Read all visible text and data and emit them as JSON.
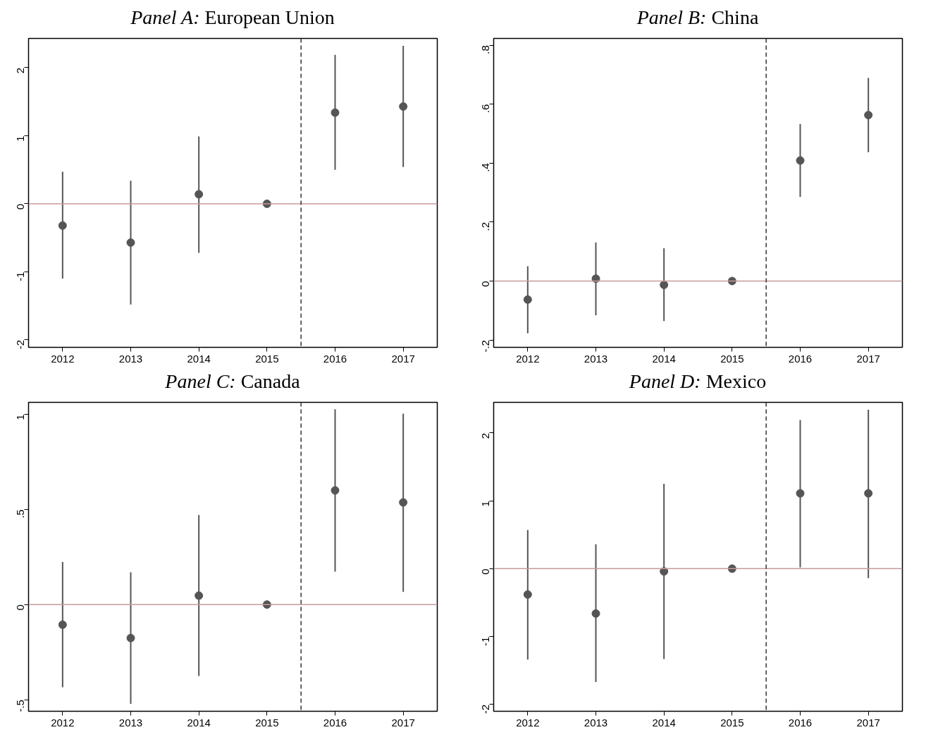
{
  "chart_data": [
    {
      "type": "scatter",
      "title": "Panel A: European Union",
      "x": [
        2012,
        2013,
        2014,
        2015,
        2016,
        2017
      ],
      "values": [
        -0.32,
        -0.57,
        0.14,
        0,
        1.34,
        1.43
      ],
      "color": "#555555",
      "marker": "circle",
      "errors": [
        [
          -1.1,
          0.47
        ],
        [
          -1.48,
          0.34
        ],
        [
          -0.72,
          0.99
        ],
        null,
        [
          0.5,
          2.19
        ],
        [
          0.54,
          2.32
        ]
      ],
      "xlim": [
        2011.5,
        2017.5
      ],
      "xticks": [
        2012,
        2013,
        2014,
        2015,
        2016,
        2017
      ],
      "ylim": [
        -2.11,
        2.43
      ],
      "yticks": [
        -2,
        -1,
        0,
        1,
        2
      ],
      "grid": false,
      "ref_lines": [
        {
          "axis": "y",
          "value": 0,
          "color": "#c89a9a",
          "line_style": "solid"
        },
        {
          "axis": "x",
          "value": 2015.5,
          "color": "#333333",
          "line_style": "dashed"
        }
      ]
    },
    {
      "type": "scatter",
      "title": "Panel B: China",
      "x": [
        2012,
        2013,
        2014,
        2015,
        2016,
        2017
      ],
      "values": [
        -0.063,
        0.008,
        -0.013,
        0,
        0.409,
        0.563
      ],
      "color": "#555555",
      "marker": "circle",
      "errors": [
        [
          -0.177,
          0.05
        ],
        [
          -0.116,
          0.131
        ],
        [
          -0.136,
          0.111
        ],
        null,
        [
          0.285,
          0.533
        ],
        [
          0.437,
          0.689
        ]
      ],
      "xlim": [
        2011.5,
        2017.5
      ],
      "xticks": [
        2012,
        2013,
        2014,
        2015,
        2016,
        2017
      ],
      "ylim": [
        -0.225,
        0.823
      ],
      "yticks": [
        {
          "value": -0.2,
          "label": "-.2"
        },
        0,
        {
          "value": 0.2,
          "label": ".2"
        },
        {
          "value": 0.4,
          "label": ".4"
        },
        {
          "value": 0.6,
          "label": ".6"
        },
        {
          "value": 0.8,
          "label": ".8"
        }
      ],
      "grid": false,
      "ref_lines": [
        {
          "axis": "y",
          "value": 0,
          "color": "#c89a9a",
          "line_style": "solid"
        },
        {
          "axis": "x",
          "value": 2015.5,
          "color": "#333333",
          "line_style": "dashed"
        }
      ]
    },
    {
      "type": "scatter",
      "title": "Panel C: Canada",
      "x": [
        2012,
        2013,
        2014,
        2015,
        2016,
        2017
      ],
      "values": [
        -0.106,
        -0.176,
        0.047,
        0,
        0.6,
        0.537
      ],
      "color": "#555555",
      "marker": "circle",
      "errors": [
        [
          -0.435,
          0.224
        ],
        [
          -0.522,
          0.169
        ],
        [
          -0.376,
          0.471
        ],
        null,
        [
          0.173,
          1.027
        ],
        [
          0.067,
          1.004
        ]
      ],
      "xlim": [
        2011.5,
        2017.5
      ],
      "xticks": [
        2012,
        2013,
        2014,
        2015,
        2016,
        2017
      ],
      "ylim": [
        -0.561,
        1.063
      ],
      "yticks": [
        {
          "value": -0.5,
          "label": "-.5"
        },
        0,
        {
          "value": 0.5,
          "label": ".5"
        },
        1
      ],
      "grid": false,
      "ref_lines": [
        {
          "axis": "y",
          "value": 0,
          "color": "#c89a9a",
          "line_style": "solid"
        },
        {
          "axis": "x",
          "value": 2015.5,
          "color": "#333333",
          "line_style": "dashed"
        }
      ]
    },
    {
      "type": "scatter",
      "title": "Panel D: Mexico",
      "x": [
        2012,
        2013,
        2014,
        2015,
        2016,
        2017
      ],
      "values": [
        -0.38,
        -0.66,
        -0.04,
        0,
        1.11,
        1.11
      ],
      "color": "#555555",
      "marker": "circle",
      "errors": [
        [
          -1.34,
          0.57
        ],
        [
          -1.67,
          0.36
        ],
        [
          -1.33,
          1.25
        ],
        null,
        [
          0.02,
          2.19
        ],
        [
          -0.14,
          2.34
        ]
      ],
      "xlim": [
        2011.5,
        2017.5
      ],
      "xticks": [
        2012,
        2013,
        2014,
        2015,
        2016,
        2017
      ],
      "ylim": [
        -2.1,
        2.45
      ],
      "yticks": [
        -2,
        -1,
        0,
        1,
        2
      ],
      "grid": false,
      "ref_lines": [
        {
          "axis": "y",
          "value": 0,
          "color": "#c89a9a",
          "line_style": "solid"
        },
        {
          "axis": "x",
          "value": 2015.5,
          "color": "#333333",
          "line_style": "dashed"
        }
      ]
    }
  ]
}
